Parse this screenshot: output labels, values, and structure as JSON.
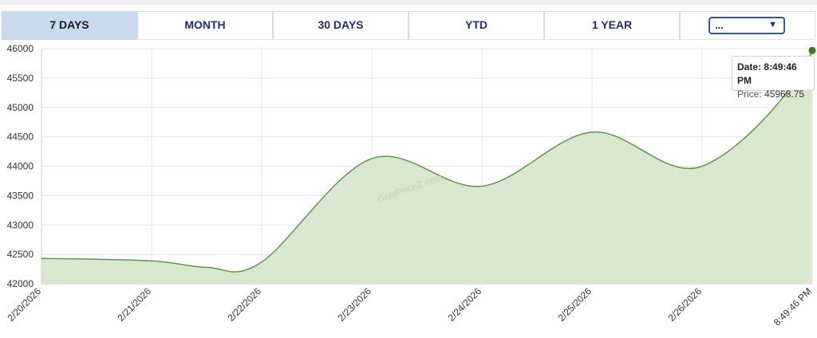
{
  "tabs": [
    {
      "label": "7 DAYS",
      "active": true
    },
    {
      "label": "MONTH",
      "active": false
    },
    {
      "label": "30 DAYS",
      "active": false
    },
    {
      "label": "YTD",
      "active": false
    },
    {
      "label": "1 YEAR",
      "active": false
    }
  ],
  "dropdown": {
    "value": "...",
    "caret_icon": "caret-down-icon"
  },
  "watermark": "GoldPriceZ.com",
  "tooltip": {
    "date_label": "Date:",
    "date_value": "8:49:46 PM",
    "price_label": "Price:",
    "price_value": "45968.75"
  },
  "colors": {
    "line": "#5a9a48",
    "fill": "#d8e8cf",
    "marker": "#2f7d1f",
    "active_tab": "#c9d9ee",
    "tab_text": "#1a2a9a"
  },
  "chart_data": {
    "type": "area",
    "title": "",
    "xlabel": "",
    "ylabel": "",
    "ylim": [
      42000,
      46000
    ],
    "yticks": [
      42000,
      42500,
      43000,
      43500,
      44000,
      44500,
      45000,
      45500,
      46000
    ],
    "xtick_labels": [
      "2/20/2026",
      "2/21/2026",
      "2/22/2026",
      "2/23/2026",
      "2/24/2026",
      "2/25/2026",
      "2/26/2026",
      "8:49:46 PM"
    ],
    "grid": true,
    "series": [
      {
        "values": [
          [
            "2/20/2026",
            42430
          ],
          [
            "2/21/2026",
            42390
          ],
          [
            "2/21/2026 12:00",
            42280
          ],
          [
            "2/22/2026",
            42370
          ],
          [
            "2/23/2026",
            44130
          ],
          [
            "2/24/2026",
            43660
          ],
          [
            "2/25/2026",
            44580
          ],
          [
            "2/26/2026",
            44000
          ],
          [
            "8:49:46 PM",
            45968.75
          ]
        ]
      }
    ]
  }
}
